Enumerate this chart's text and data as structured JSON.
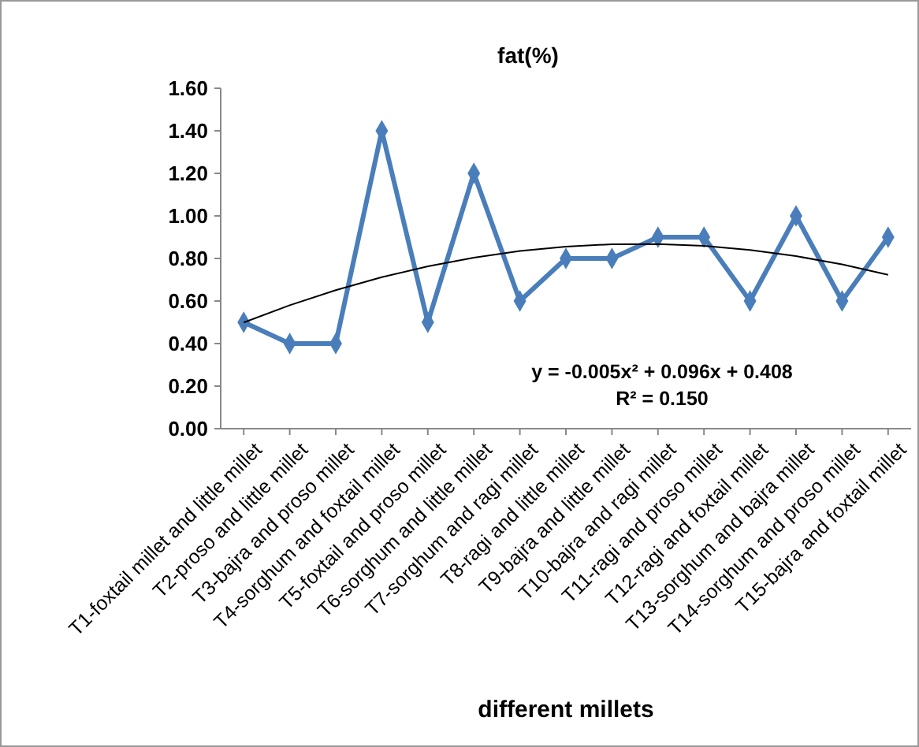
{
  "chart_data": {
    "type": "line",
    "title": "fat(%)",
    "xlabel": "different millets",
    "categories": [
      "T1-foxtail millet and little millet",
      "T2-proso and little millet",
      "T3-bajra and proso millet",
      "T4-sorghum and foxtail millet",
      "T5-foxtail and proso millet",
      "T6-sorghum and little millet",
      "T7-sorghum and ragi millet",
      "T8-ragi and little millet",
      "T9-bajra and little millet",
      "T10-bajra and ragi millet",
      "T11-ragi and proso millet",
      "T12-ragi and foxtail millet",
      "T13-sorghum and bajra millet",
      "T14-sorghum and proso millet",
      "T15-bajra and foxtail millet"
    ],
    "series": [
      {
        "color": "#4a7ebb",
        "marker": "diamond",
        "values": [
          0.5,
          0.4,
          0.4,
          1.4,
          0.5,
          1.2,
          0.6,
          0.8,
          0.8,
          0.9,
          0.9,
          0.6,
          1.0,
          0.6,
          0.9
        ]
      },
      {
        "type": "line",
        "color": "#000000",
        "marker": "none",
        "values": [
          0.499,
          0.58,
          0.651,
          0.712,
          0.763,
          0.804,
          0.835,
          0.856,
          0.867,
          0.868,
          0.859,
          0.84,
          0.811,
          0.772,
          0.723
        ]
      }
    ],
    "ylim": [
      0,
      1.6
    ],
    "yticks": [
      {
        "value": 0,
        "label": "0.00"
      },
      {
        "value": 0.2,
        "label": "0.20"
      },
      {
        "value": 0.4,
        "label": "0.40"
      },
      {
        "value": 0.6,
        "label": "0.60"
      },
      {
        "value": 0.8,
        "label": "0.80"
      },
      {
        "value": 1.0,
        "label": "1.00"
      },
      {
        "value": 1.2,
        "label": "1.20"
      },
      {
        "value": 1.4,
        "label": "1.40"
      },
      {
        "value": 1.6,
        "label": "1.60"
      }
    ],
    "annotations": [
      "y = -0.005x² + 0.096x + 0.408",
      "R² = 0.150"
    ],
    "grid": false
  }
}
